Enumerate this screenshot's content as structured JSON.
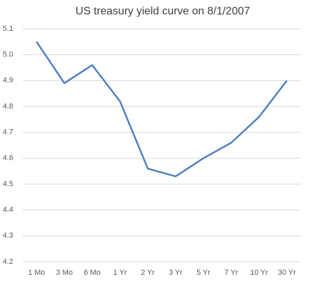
{
  "chart_data": {
    "type": "line",
    "title": "US treasury yield curve on 8/1/2007",
    "categories": [
      "1 Mo",
      "3 Mo",
      "6 Mo",
      "1 Yr",
      "2 Yr",
      "3 Yr",
      "5 Yr",
      "7 Yr",
      "10 Yr",
      "30 Yr"
    ],
    "values": [
      5.05,
      4.89,
      4.96,
      4.82,
      4.56,
      4.53,
      4.6,
      4.66,
      4.76,
      4.9
    ],
    "color": "#4e7fbf",
    "ylim": [
      4.2,
      5.1
    ],
    "yticks": [
      4.2,
      4.3,
      4.4,
      4.5,
      4.6,
      4.7,
      4.8,
      4.9,
      {
        "value": 5,
        "label": "5.0"
      },
      5.1
    ],
    "grid": true
  }
}
